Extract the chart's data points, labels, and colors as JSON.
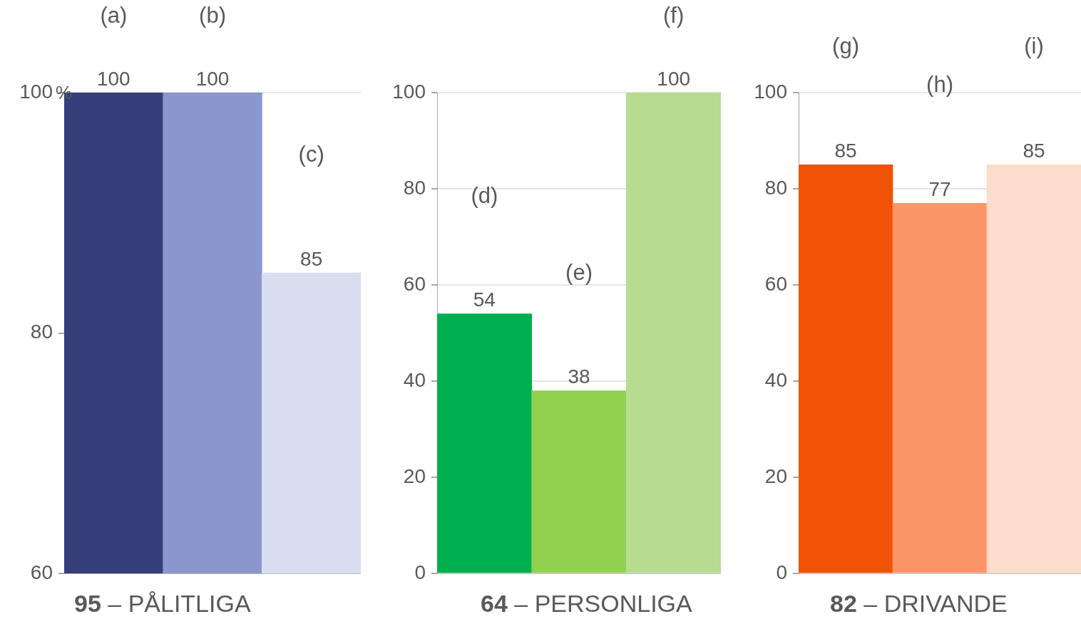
{
  "chart_data": [
    {
      "type": "bar",
      "title": "95 – PÅLITLIGA",
      "ylabel": "%",
      "categories": [
        null,
        null,
        null
      ],
      "values": [
        100,
        100,
        85
      ],
      "colors": [
        "#363f7a",
        "#8a96cc",
        "#d8ddef"
      ],
      "ylim": [
        60,
        100
      ],
      "yticks": [
        60,
        80,
        100
      ],
      "grid": "y",
      "data_labels": true,
      "annotations": [
        "(a)",
        "(b)",
        "(c)"
      ]
    },
    {
      "type": "bar",
      "title": "64 – PERSONLIGA",
      "categories": [
        null,
        null,
        null
      ],
      "values": [
        54,
        38,
        100
      ],
      "colors": [
        "#00af50",
        "#92d050",
        "#b5dc8f"
      ],
      "ylim": [
        0,
        100
      ],
      "yticks": [
        0,
        20,
        40,
        60,
        80,
        100
      ],
      "grid": "y",
      "data_labels": true,
      "annotations": [
        "(d)",
        "(e)",
        "(f)"
      ]
    },
    {
      "type": "bar",
      "title": "82 – DRIVANDE",
      "categories": [
        null,
        null,
        null
      ],
      "values": [
        85,
        77,
        85
      ],
      "colors": [
        "#f05206",
        "#fc9566",
        "#fcdccb"
      ],
      "ylim": [
        0,
        100
      ],
      "yticks": [
        0,
        20,
        40,
        60,
        80,
        100
      ],
      "grid": "y",
      "data_labels": true,
      "annotations": [
        "(g)",
        "(h)",
        "(i)"
      ]
    }
  ]
}
